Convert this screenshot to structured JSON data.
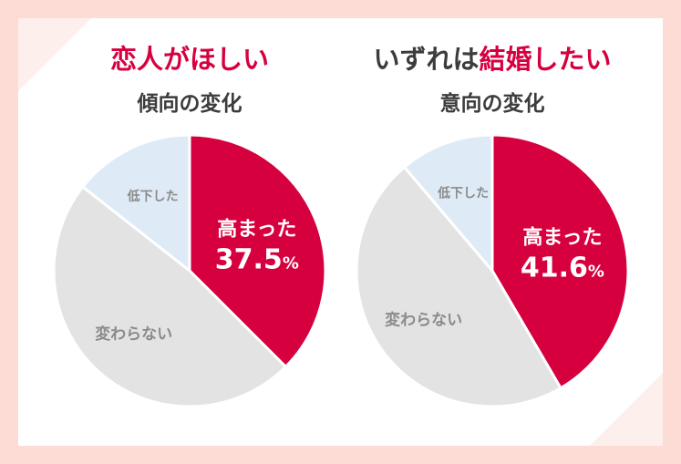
{
  "colors": {
    "increased": "#d7003f",
    "unchanged": "#e3e3e3",
    "decreased": "#deebf7",
    "label_gray": "#8a8a8a"
  },
  "chart_data": [
    {
      "type": "pie",
      "title_line1": [
        "恋人がほしい"
      ],
      "title_line2": "傾向の変化",
      "slices": [
        {
          "label": "高まった",
          "value": 37.5,
          "value_label": "37.5",
          "unit": "%"
        },
        {
          "label": "変わらない",
          "value": 48.1
        },
        {
          "label": "低下した",
          "value": 14.4
        }
      ]
    },
    {
      "type": "pie",
      "title_line1": [
        "いずれは",
        "結婚したい"
      ],
      "title_line2": "意向の変化",
      "slices": [
        {
          "label": "高まった",
          "value": 41.6,
          "value_label": "41.6",
          "unit": "%"
        },
        {
          "label": "変わらない",
          "value": 47.2
        },
        {
          "label": "低下した",
          "value": 11.2
        }
      ]
    }
  ]
}
